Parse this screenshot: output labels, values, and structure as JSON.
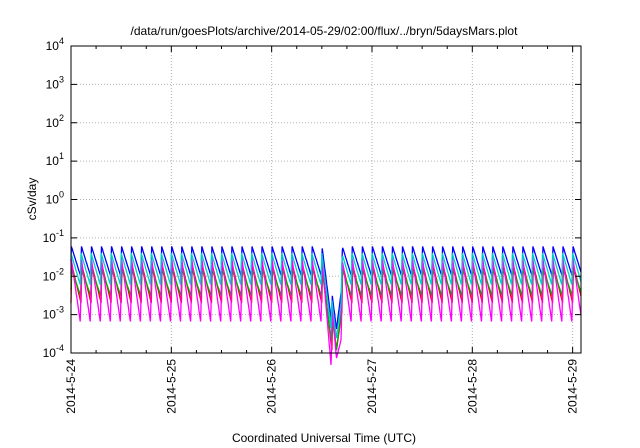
{
  "chart_data": {
    "type": "line",
    "title": "/data/run/goesPlots/archive/2014-05-29/02:00/flux/../bryn/5daysMars.plot",
    "xlabel": "Coordinated Universal Time (UTC)",
    "ylabel": "cSv/day",
    "yscale": "log",
    "ylim": [
      0.0001,
      10000
    ],
    "xlim": [
      "2014-05-24T00:00",
      "2014-05-29T02:00"
    ],
    "grid": true,
    "legend": "none",
    "x_ticks": [
      "2014-5-24",
      "2014-5-25",
      "2014-5-26",
      "2014-5-27",
      "2014-5-28",
      "2014-5-29"
    ],
    "y_ticks": [
      {
        "value": 0.0001,
        "base": "10",
        "exp": "-4"
      },
      {
        "value": 0.001,
        "base": "10",
        "exp": "-3"
      },
      {
        "value": 0.01,
        "base": "10",
        "exp": "-2"
      },
      {
        "value": 0.1,
        "base": "10",
        "exp": "-1"
      },
      {
        "value": 1,
        "base": "10",
        "exp": "0"
      },
      {
        "value": 10,
        "base": "10",
        "exp": "1"
      },
      {
        "value": 100,
        "base": "10",
        "exp": "2"
      },
      {
        "value": 1000,
        "base": "10",
        "exp": "3"
      },
      {
        "value": 10000,
        "base": "10",
        "exp": "4"
      }
    ],
    "pattern": {
      "description": "sawtooth, ~10 cycles/day, sharp rise then exponential decay; dip near 2014-05-26 15:00",
      "cycle_hours": 2.4,
      "dip_start": "2014-05-26T12:00",
      "dip_min": "2014-05-26T15:30",
      "dip_end": "2014-05-26T17:00"
    },
    "series": [
      {
        "color": "#ff0000",
        "peak": 0.02,
        "trough": 0.002
      },
      {
        "color": "#00aa00",
        "peak": 0.015,
        "trough": 0.003
      },
      {
        "color": "#0000ff",
        "peak": 0.06,
        "trough": 0.01
      },
      {
        "color": "#ff00ff",
        "peak": 0.03,
        "trough": 0.0006
      },
      {
        "color": "#00cccc",
        "peak": 0.04,
        "trough": 0.006
      }
    ]
  }
}
